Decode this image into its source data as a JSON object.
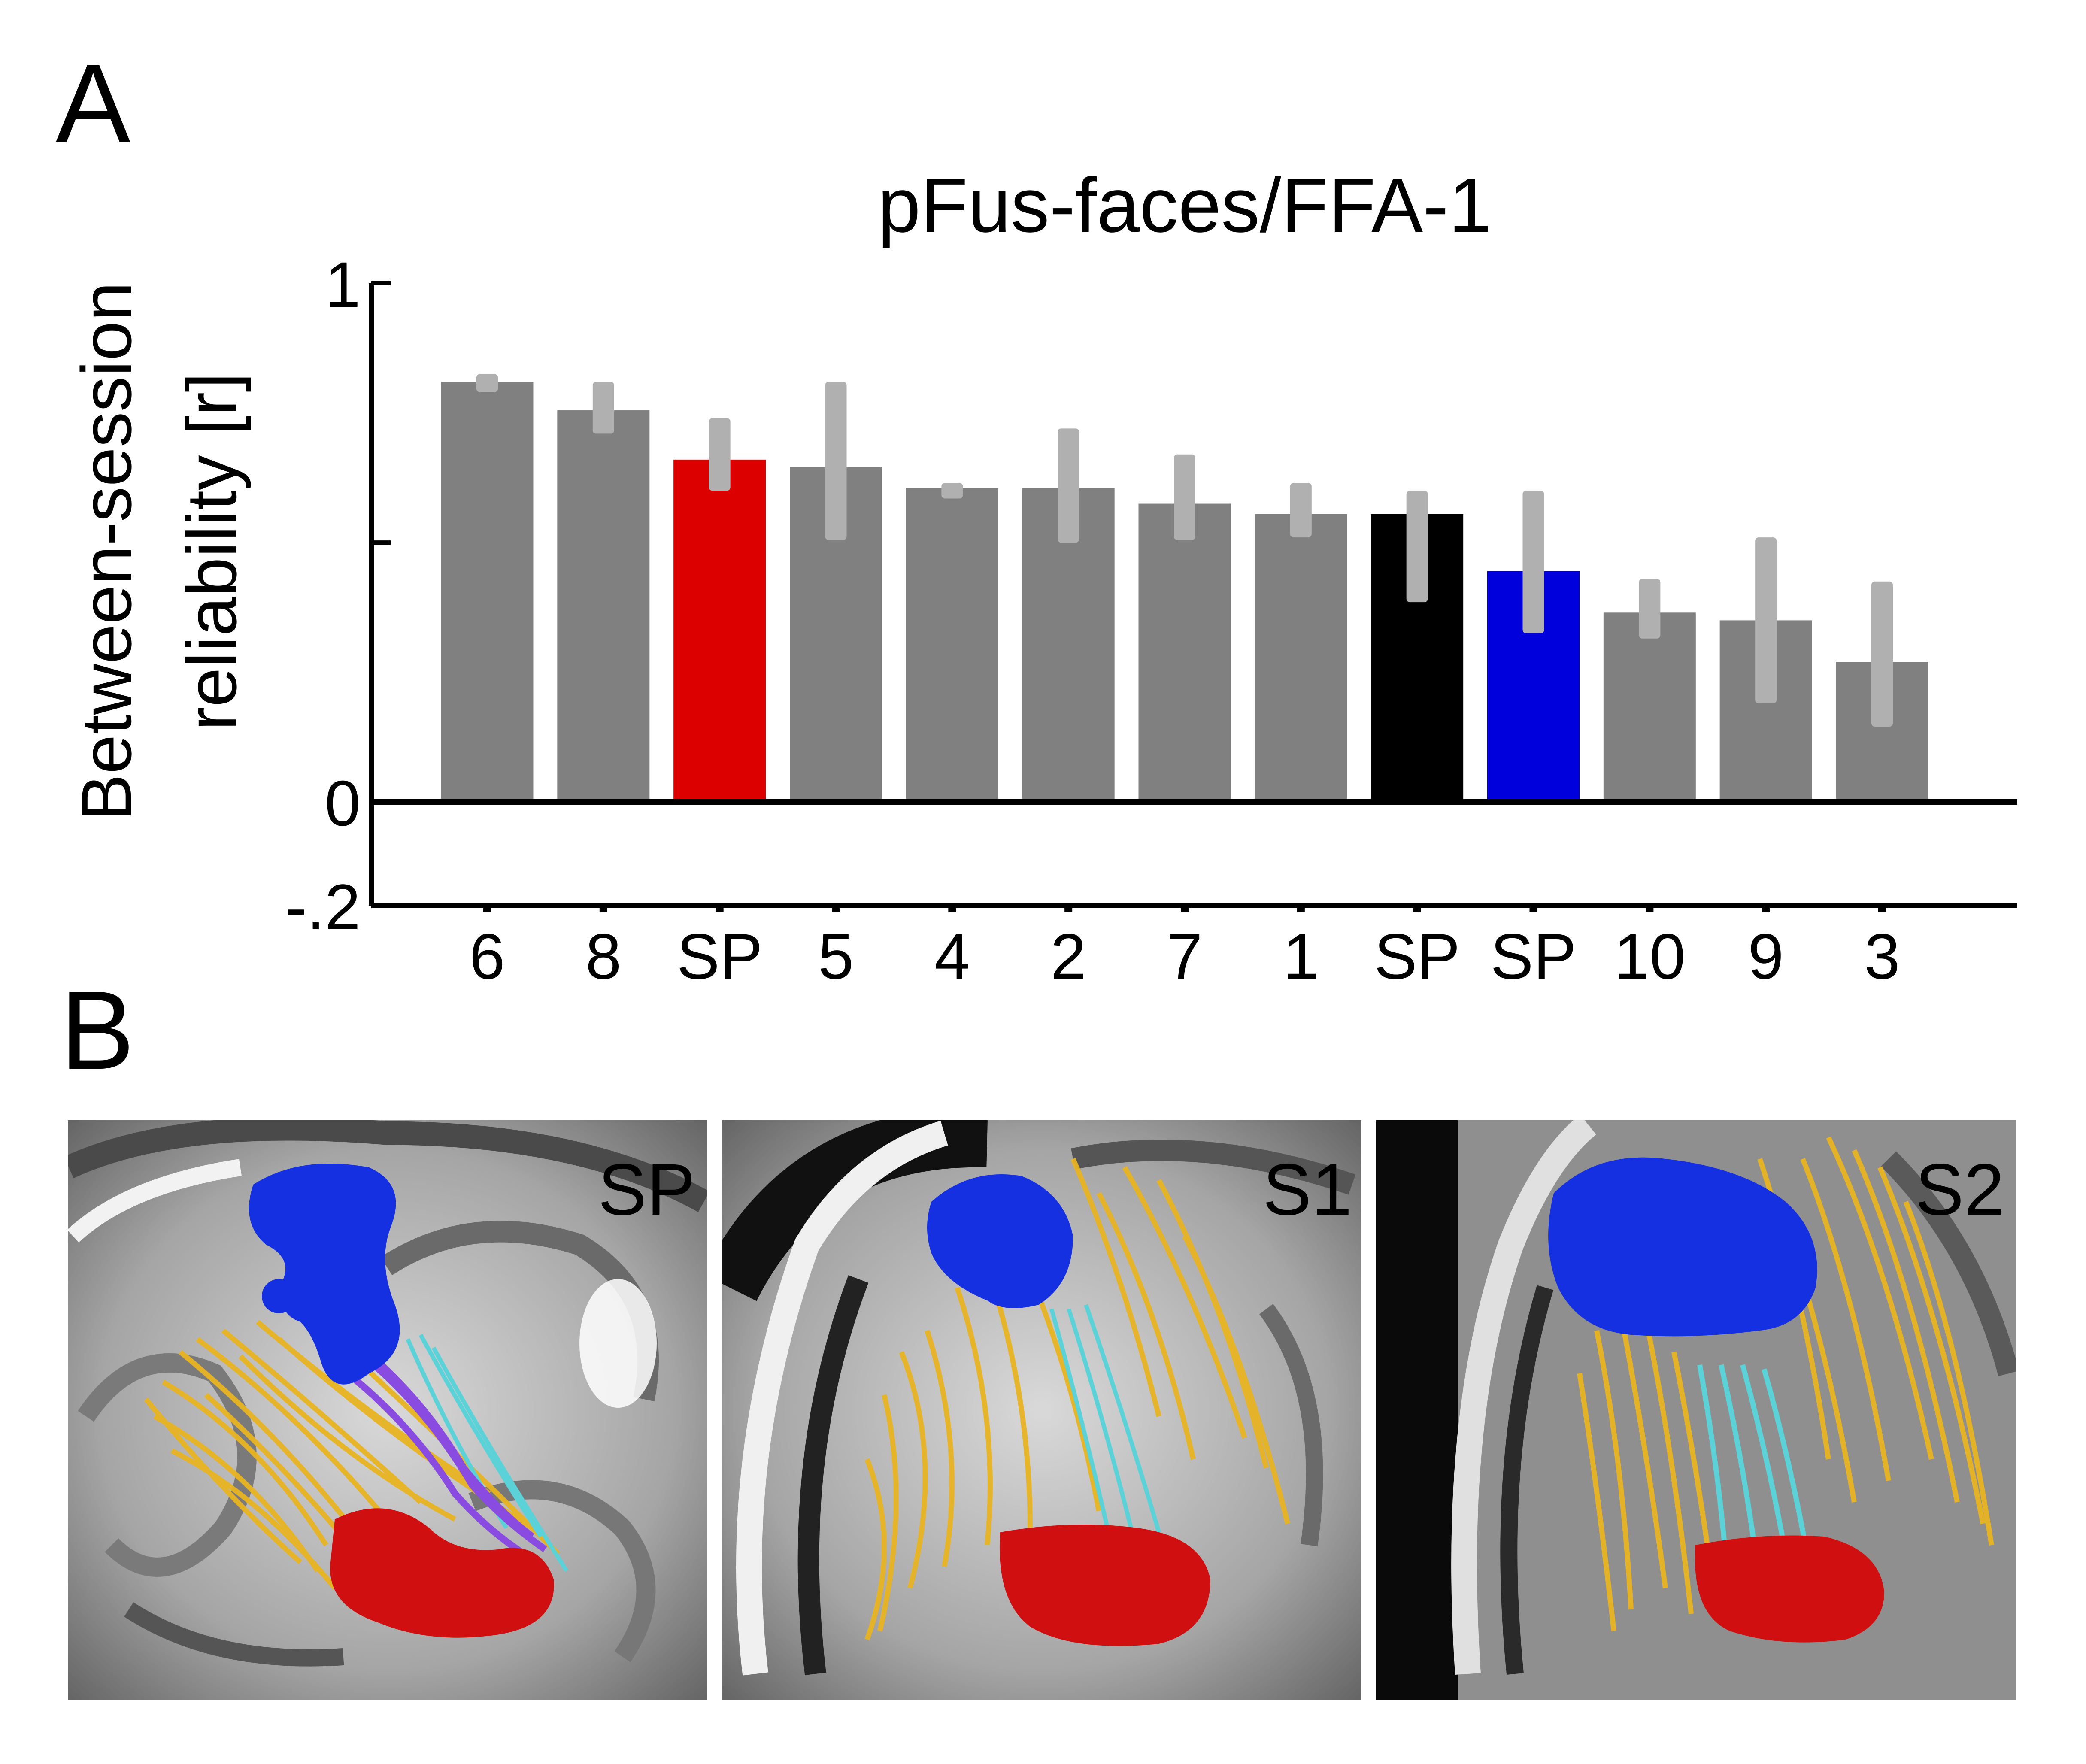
{
  "panels": {
    "a_letter": "A",
    "b_letter": "B"
  },
  "chart_data": {
    "type": "bar",
    "title": "pFus-faces/FFA-1",
    "ylabel_line1": "Between-session",
    "ylabel_line2": "reliability [r]",
    "xlabel": "",
    "ylim": [
      -0.2,
      1
    ],
    "yticks": [
      {
        "value": 1,
        "label": "1"
      },
      {
        "value": 0.5,
        "label": ""
      },
      {
        "value": 0,
        "label": "0"
      },
      {
        "value": -0.2,
        "label": "-.2"
      }
    ],
    "categories": [
      "6",
      "8",
      "SP",
      "5",
      "4",
      "2",
      "7",
      "1",
      "SP",
      "SP",
      "10",
      "9",
      "3"
    ],
    "values": [
      0.81,
      0.755,
      0.66,
      0.645,
      0.605,
      0.605,
      0.575,
      0.555,
      0.555,
      0.445,
      0.365,
      0.35,
      0.27
    ],
    "err_low": [
      0.79,
      0.71,
      0.6,
      0.505,
      0.585,
      0.5,
      0.505,
      0.51,
      0.385,
      0.325,
      0.315,
      0.19,
      0.145
    ],
    "err_high": [
      0.825,
      0.81,
      0.74,
      0.81,
      0.615,
      0.72,
      0.67,
      0.615,
      0.6,
      0.6,
      0.43,
      0.51,
      0.425
    ],
    "colors": [
      "#808080",
      "#808080",
      "#dd0000",
      "#808080",
      "#808080",
      "#808080",
      "#808080",
      "#808080",
      "#000000",
      "#0000dd",
      "#808080",
      "#808080",
      "#808080"
    ],
    "errorbar_color": "#b0b0b0",
    "grid": false
  },
  "images": [
    {
      "label": "SP",
      "label_color": "#000000"
    },
    {
      "label": "S1",
      "label_color": "#ffffff"
    },
    {
      "label": "S2",
      "label_color": "#ffffff"
    }
  ],
  "colors": {
    "tracts_outer": "#e8b422",
    "tracts_inner": "#5ad2d8",
    "tracts_extra": "#8a4be0",
    "roi_top": "#1530e0",
    "roi_bottom": "#d01010"
  }
}
